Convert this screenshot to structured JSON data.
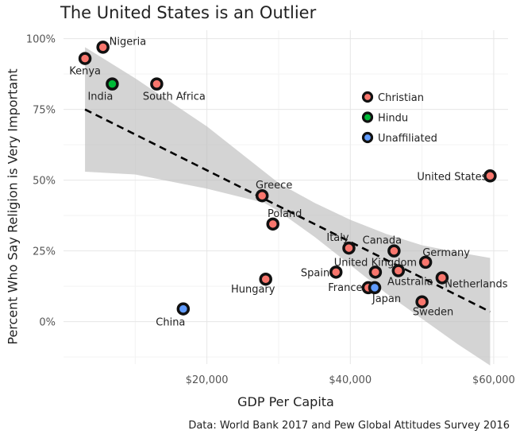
{
  "chart_data": {
    "type": "scatter",
    "title": "The United States is an Outlier",
    "xlabel": "GDP Per Capita",
    "ylabel": "Percent Who Say Religion is Very Important",
    "caption": "Data: World Bank 2017 and Pew Global Attitudes Survey 2016",
    "xlim": [
      0,
      62000
    ],
    "ylim": [
      -0.15,
      1.03
    ],
    "x_ticks": [
      20000,
      40000,
      60000
    ],
    "x_tick_labels": [
      "$20,000",
      "$40,000",
      "$60,000"
    ],
    "y_ticks": [
      0,
      0.25,
      0.5,
      0.75,
      1.0
    ],
    "y_tick_labels": [
      "0%",
      "25%",
      "50%",
      "75%",
      "100%"
    ],
    "grid": true,
    "legend_position": "top-right",
    "legend": [
      {
        "name": "Christian",
        "color": "#f8766d"
      },
      {
        "name": "Hindu",
        "color": "#00ba38"
      },
      {
        "name": "Unaffiliated",
        "color": "#619cff"
      }
    ],
    "points": [
      {
        "country": "Nigeria",
        "x": 5500,
        "y": 0.97,
        "group": "Christian"
      },
      {
        "country": "Kenya",
        "x": 3000,
        "y": 0.93,
        "group": "Christian"
      },
      {
        "country": "India",
        "x": 6800,
        "y": 0.84,
        "group": "Hindu"
      },
      {
        "country": "South Africa",
        "x": 13000,
        "y": 0.84,
        "group": "Christian"
      },
      {
        "country": "United States",
        "x": 59500,
        "y": 0.515,
        "group": "Christian"
      },
      {
        "country": "Greece",
        "x": 27700,
        "y": 0.445,
        "group": "Christian"
      },
      {
        "country": "Poland",
        "x": 29200,
        "y": 0.345,
        "group": "Christian"
      },
      {
        "country": "Italy",
        "x": 39800,
        "y": 0.26,
        "group": "Christian"
      },
      {
        "country": "Canada",
        "x": 46100,
        "y": 0.25,
        "group": "Christian"
      },
      {
        "country": "Germany",
        "x": 50500,
        "y": 0.21,
        "group": "Christian"
      },
      {
        "country": "United Kingdom",
        "x": 43500,
        "y": 0.175,
        "group": "Christian"
      },
      {
        "country": "Australia",
        "x": 46700,
        "y": 0.18,
        "group": "Christian"
      },
      {
        "country": "Spain",
        "x": 38000,
        "y": 0.175,
        "group": "Christian"
      },
      {
        "country": "Hungary",
        "x": 28200,
        "y": 0.15,
        "group": "Christian"
      },
      {
        "country": "Netherlands",
        "x": 52800,
        "y": 0.155,
        "group": "Christian"
      },
      {
        "country": "France",
        "x": 42500,
        "y": 0.12,
        "group": "Christian"
      },
      {
        "country": "Japan",
        "x": 43400,
        "y": 0.12,
        "group": "Unaffiliated"
      },
      {
        "country": "Sweden",
        "x": 50000,
        "y": 0.07,
        "group": "Christian"
      },
      {
        "country": "China",
        "x": 16700,
        "y": 0.045,
        "group": "Unaffiliated"
      }
    ],
    "trend": {
      "x": [
        3000,
        59500
      ],
      "y": [
        0.75,
        0.035
      ]
    },
    "confidence_band": {
      "x": [
        3000,
        10000,
        20000,
        28000,
        30000,
        35000,
        40000,
        45000,
        50000,
        55000,
        59500
      ],
      "upper": [
        0.97,
        0.86,
        0.69,
        0.53,
        0.49,
        0.42,
        0.36,
        0.31,
        0.27,
        0.245,
        0.225
      ],
      "lower": [
        0.53,
        0.52,
        0.47,
        0.42,
        0.39,
        0.3,
        0.2,
        0.1,
        0.01,
        -0.08,
        -0.155
      ]
    }
  }
}
